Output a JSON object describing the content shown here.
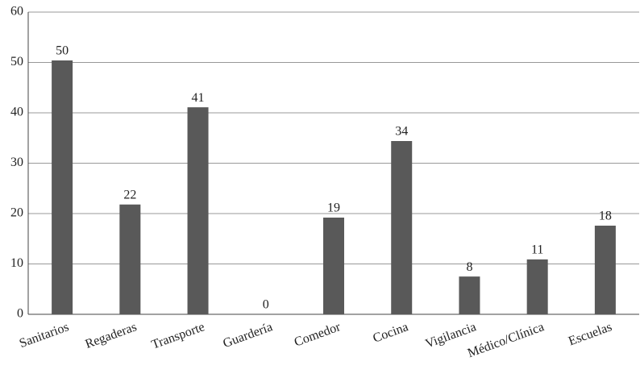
{
  "chart_data": {
    "type": "bar",
    "categories": [
      "Sanitarios",
      "Regaderas",
      "Transporte",
      "Guardería",
      "Comedor",
      "Cocina",
      "Vigilancia",
      "Médico/Clínica",
      "Escuelas"
    ],
    "values": [
      50.4,
      21.8,
      41.1,
      0,
      19.2,
      34.4,
      7.5,
      10.9,
      17.6
    ],
    "value_labels": [
      "50",
      "22",
      "41",
      "0",
      "19",
      "34",
      "8",
      "11",
      "18"
    ],
    "color": "#595959",
    "ylim": [
      0,
      60
    ],
    "yticks": [
      0,
      10,
      20,
      30,
      40,
      50,
      60
    ],
    "grid": true
  }
}
